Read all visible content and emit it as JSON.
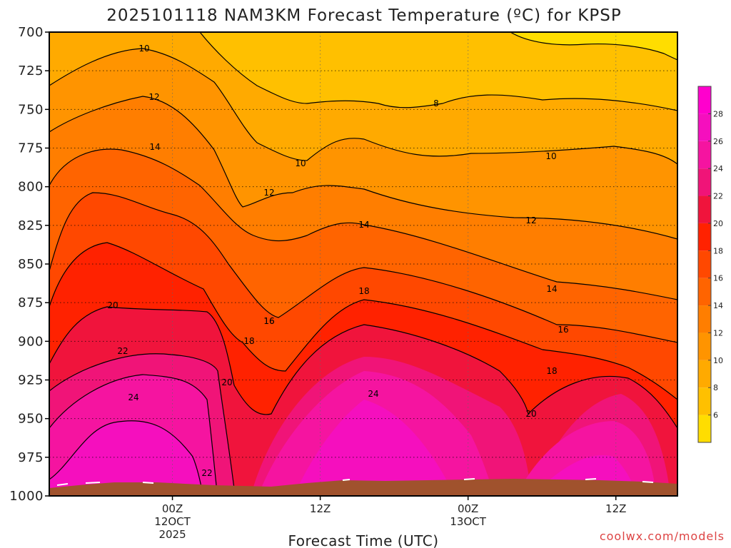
{
  "chart_data": {
    "type": "heatmap",
    "title": "2025101118 NAM3KM Forecast Temperature (ºC) for KPSP",
    "xlabel": "Forecast Time (UTC)",
    "ylabel": "",
    "credit": "coolwx.com/models",
    "y_ticks": [
      "700",
      "725",
      "750",
      "775",
      "800",
      "825",
      "850",
      "875",
      "900",
      "925",
      "950",
      "975",
      "1000"
    ],
    "ylim": [
      1000,
      700
    ],
    "x_ticks": [
      {
        "time": "00Z",
        "date": "12OCT",
        "year": "2025"
      },
      {
        "time": "12Z",
        "date": "",
        "year": ""
      },
      {
        "time": "00Z",
        "date": "13OCT",
        "year": ""
      },
      {
        "time": "12Z",
        "date": "",
        "year": ""
      },
      {
        "time": "00Z",
        "date": "14OCT",
        "year": ""
      }
    ],
    "xlim_hours": [
      -10,
      41
    ],
    "contour_levels": [
      4,
      6,
      8,
      10,
      12,
      14,
      16,
      18,
      20,
      22,
      24,
      26,
      28
    ],
    "colorbar_labels": [
      "6",
      "8",
      "10",
      "12",
      "14",
      "16",
      "18",
      "20",
      "22",
      "24",
      "26",
      "28"
    ],
    "colorbar_colors": [
      "#ffdd00",
      "#ffc000",
      "#ffaa00",
      "#ff9400",
      "#ff7e00",
      "#ff6400",
      "#ff4800",
      "#ff2200",
      "#f0143c",
      "#f01478",
      "#f514a0",
      "#f50fbe",
      "#ff00cd"
    ],
    "contour_labels": [
      "10",
      "12",
      "14",
      "8",
      "10",
      "12",
      "10",
      "12",
      "14",
      "12",
      "20",
      "22",
      "18",
      "16",
      "14",
      "20",
      "18",
      "16",
      "20",
      "24",
      "24",
      "22",
      "18",
      "16",
      "14"
    ],
    "temperature_profiles": {
      "pressure_levels": [
        700,
        750,
        800,
        850,
        900,
        950,
        1000
      ],
      "hours": [
        -10,
        -6,
        0,
        6,
        12,
        18,
        24,
        30,
        36,
        41
      ],
      "values": [
        [
          10,
          14,
          18,
          20,
          22,
          24,
          25
        ],
        [
          11,
          15,
          19,
          21,
          24,
          26,
          28
        ],
        [
          10,
          14,
          18,
          21,
          24,
          26,
          28
        ],
        [
          10,
          14,
          17,
          20,
          23,
          25,
          28
        ],
        [
          8,
          11,
          13,
          16,
          18,
          20,
          23
        ],
        [
          6,
          10,
          13,
          15,
          18,
          20,
          22
        ],
        [
          7,
          11,
          14,
          18,
          22,
          25,
          28
        ],
        [
          7,
          10,
          13,
          15,
          18,
          20,
          23
        ],
        [
          7,
          10,
          13,
          15,
          17,
          20,
          25
        ],
        [
          5,
          9,
          12,
          14,
          16,
          18,
          19
        ]
      ]
    }
  }
}
